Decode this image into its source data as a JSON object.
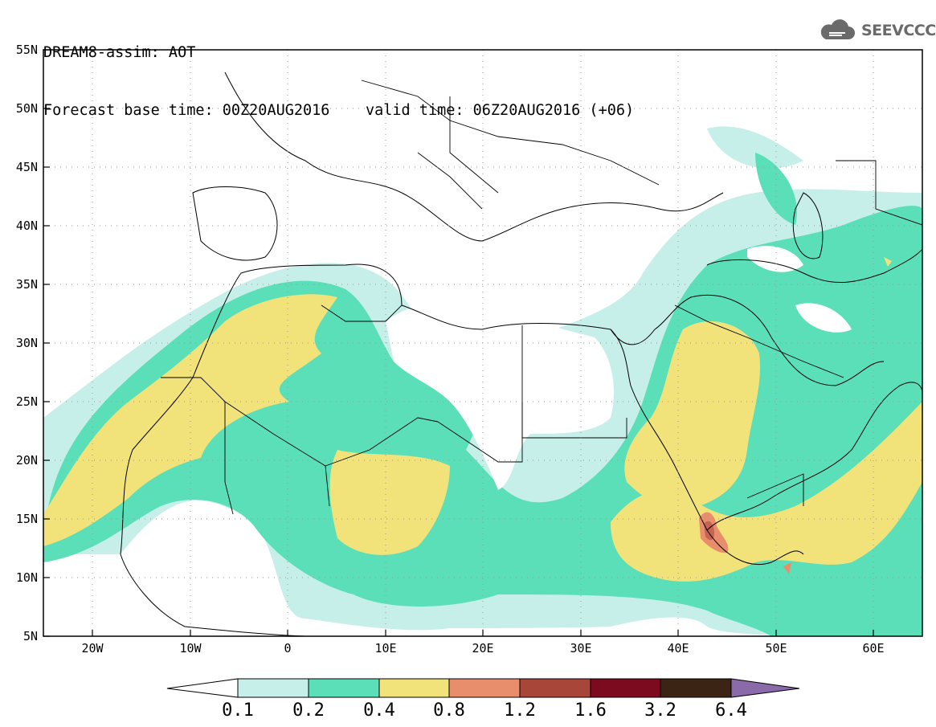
{
  "header": {
    "line1": "DREAM8-assim: AOT",
    "forecast_base": "Forecast base time: 00Z20AUG2016",
    "valid": "valid time: 06Z20AUG2016 (+06)"
  },
  "logo": {
    "text": "SEEVCCC",
    "icon": "cloud-icon"
  },
  "map": {
    "variable": "AOT",
    "lon_range": [
      -25,
      65
    ],
    "lat_range": [
      5,
      55
    ],
    "lat_ticks": [
      "55N",
      "50N",
      "45N",
      "40N",
      "35N",
      "30N",
      "25N",
      "20N",
      "15N",
      "10N",
      "5N"
    ],
    "lon_ticks": [
      "20W",
      "10W",
      "0",
      "10E",
      "20E",
      "30E",
      "40E",
      "50E",
      "60E"
    ],
    "grid": "dotted"
  },
  "colorbar": {
    "labels": [
      "0.1",
      "0.2",
      "0.4",
      "0.8",
      "1.2",
      "1.6",
      "3.2",
      "6.4"
    ],
    "colors": [
      "#ffffff",
      "#c7efe9",
      "#5bdfb8",
      "#f2e27a",
      "#e88e6c",
      "#a8463a",
      "#7c0b20",
      "#3c2414",
      "#8a6aa8"
    ]
  }
}
